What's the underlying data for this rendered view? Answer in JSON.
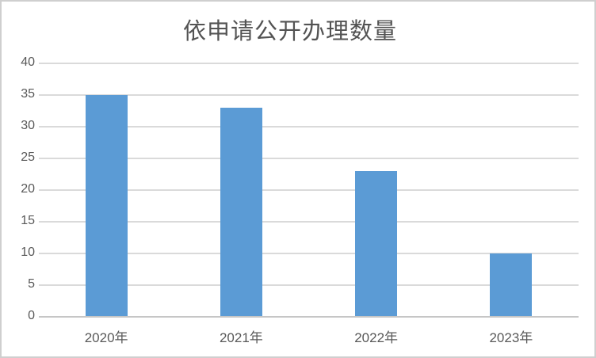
{
  "title": "依申请公开办理数量",
  "colors": {
    "bar": "#5B9BD5",
    "gridline": "#DADADA",
    "axis_line": "#C6C6C6",
    "text": "#595959",
    "title_text": "#535353",
    "border": "#CFCFCF",
    "background": "#FFFFFF"
  },
  "chart_data": {
    "type": "bar",
    "title": "依申请公开办理数量",
    "categories": [
      "2020年",
      "2021年",
      "2022年",
      "2023年"
    ],
    "values": [
      35,
      33,
      23,
      10
    ],
    "series": [
      {
        "name": "依申请公开办理数量",
        "values": [
          35,
          33,
          23,
          10
        ]
      }
    ],
    "xlabel": "",
    "ylabel": "",
    "ylim": [
      0,
      40
    ],
    "yticks": [
      0,
      5,
      10,
      15,
      20,
      25,
      30,
      35,
      40
    ],
    "grid": true,
    "legend": false,
    "legend_position": "none",
    "bar_color": "#5B9BD5"
  }
}
